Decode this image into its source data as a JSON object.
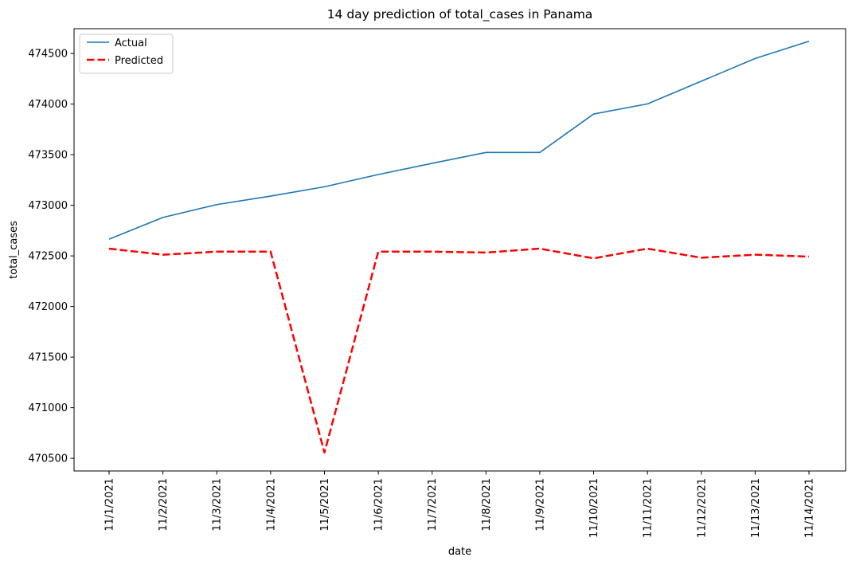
{
  "chart_data": {
    "type": "line",
    "title": "14 day prediction of total_cases in Panama",
    "xlabel": "date",
    "ylabel": "total_cases",
    "categories": [
      "11/1/2021",
      "11/2/2021",
      "11/3/2021",
      "11/4/2021",
      "11/5/2021",
      "11/6/2021",
      "11/7/2021",
      "11/8/2021",
      "11/9/2021",
      "11/10/2021",
      "11/11/2021",
      "11/12/2021",
      "11/13/2021",
      "11/14/2021"
    ],
    "yticks": [
      470500,
      471000,
      471500,
      472000,
      472500,
      473000,
      473500,
      474000,
      474500
    ],
    "ylim": [
      470375,
      474745
    ],
    "legend_position": "top-left",
    "series": [
      {
        "name": "Actual",
        "color": "#1f77b4",
        "style": "solid",
        "values": [
          472665,
          472880,
          473007,
          473091,
          473183,
          473304,
          473415,
          473522,
          473522,
          473902,
          474002,
          474226,
          474451,
          474621
        ]
      },
      {
        "name": "Predicted",
        "color": "#ff0000",
        "style": "dashed",
        "values": [
          472572,
          472512,
          472542,
          472542,
          470557,
          472542,
          472542,
          472533,
          472572,
          472476,
          472572,
          472482,
          472512,
          472493
        ]
      }
    ]
  }
}
